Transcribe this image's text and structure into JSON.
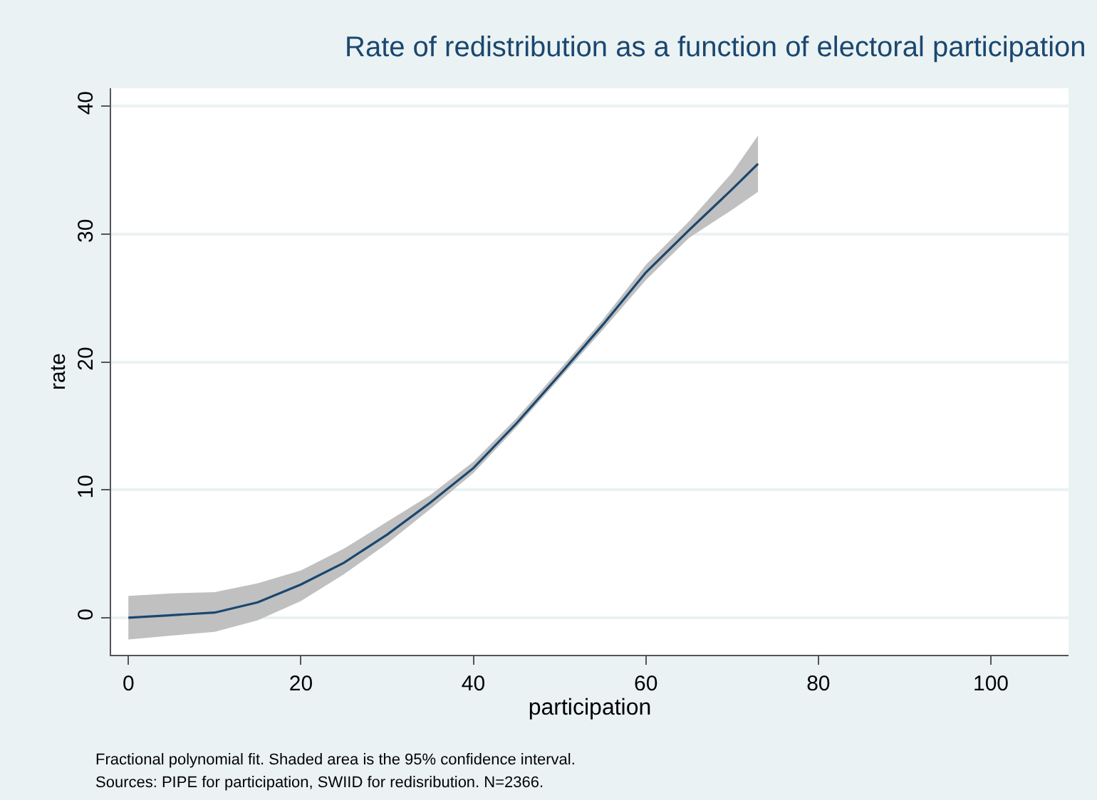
{
  "chart_data": {
    "type": "line",
    "title": "Rate of redistribution as a function of electoral participation",
    "xlabel": "participation",
    "ylabel": "rate",
    "annotations": [
      "Fractional polynomial fit. Shaded area is the 95% confidence interval.",
      "Sources: PIPE for participation, SWIID for redisribution. N=2366."
    ],
    "x": [
      0,
      5,
      10,
      15,
      20,
      25,
      30,
      35,
      40,
      45,
      50,
      55,
      60,
      65,
      70,
      73
    ],
    "series": [
      {
        "color": "#1a476f",
        "values": [
          0,
          0.2,
          0.4,
          1.2,
          2.6,
          4.3,
          6.5,
          9,
          11.7,
          15.2,
          19,
          22.9,
          27,
          30.3,
          33.5,
          35.5
        ],
        "lower": [
          -1.7,
          -1.4,
          -1.1,
          -0.2,
          1.3,
          3.4,
          5.8,
          8.5,
          11.3,
          14.9,
          18.7,
          22.5,
          26.4,
          29.7,
          31.9,
          33.3
        ],
        "upper": [
          1.7,
          1.9,
          2.0,
          2.7,
          3.7,
          5.4,
          7.5,
          9.6,
          12.2,
          15.6,
          19.4,
          23.3,
          27.6,
          31,
          34.8,
          37.7
        ]
      }
    ],
    "xlim": [
      -2,
      109
    ],
    "xticks": [
      0,
      20,
      40,
      60,
      80,
      100
    ],
    "ylim": [
      -2.9,
      41.4
    ],
    "yticks": [
      0,
      10,
      20,
      30,
      40
    ],
    "grid": "y",
    "line_style": "solid"
  }
}
